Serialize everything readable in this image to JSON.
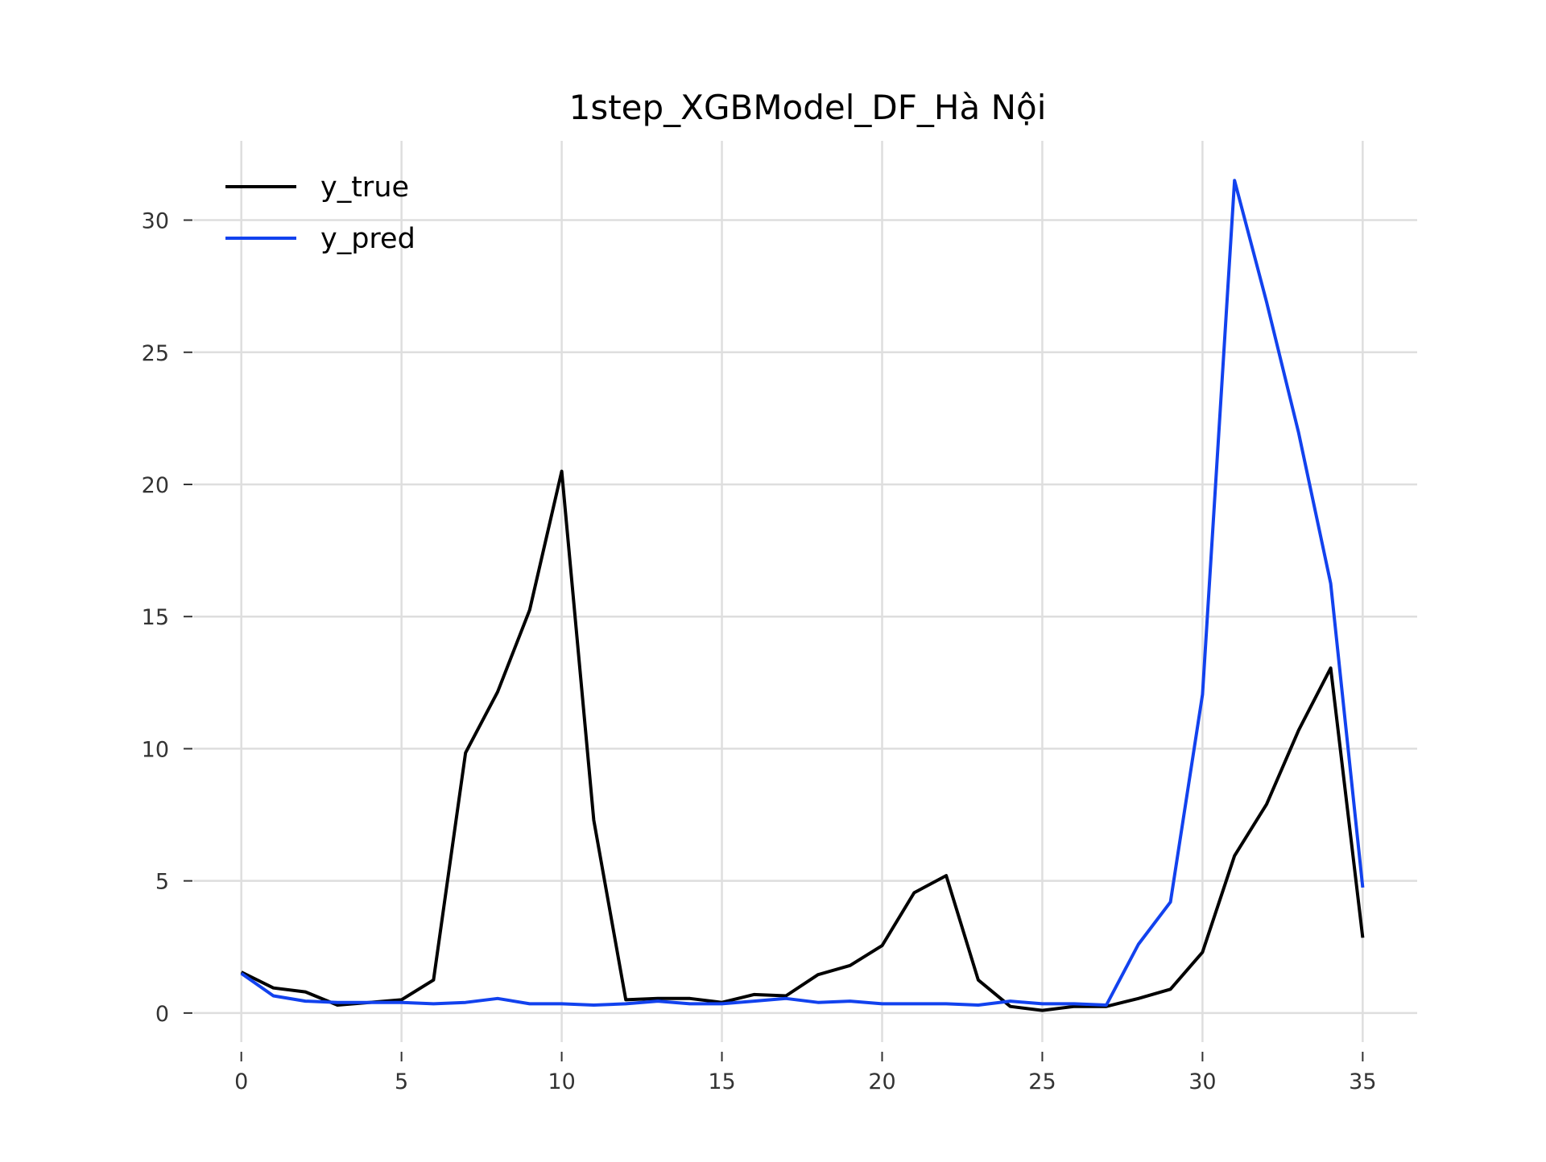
{
  "chart_data": {
    "type": "line",
    "title": "1step_XGBModel_DF_Hà Nội",
    "xlabel": "",
    "ylabel": "",
    "xlim": [
      -1.5,
      36.7
    ],
    "ylim": [
      -1.1,
      33.0
    ],
    "x_ticks": [
      0,
      5,
      10,
      15,
      20,
      25,
      30,
      35
    ],
    "y_ticks": [
      0,
      5,
      10,
      15,
      20,
      25,
      30
    ],
    "grid": true,
    "legend_position": "top-left",
    "x": [
      0,
      1,
      2,
      3,
      4,
      5,
      6,
      7,
      8,
      9,
      10,
      11,
      12,
      13,
      14,
      15,
      16,
      17,
      18,
      19,
      20,
      21,
      22,
      23,
      24,
      25,
      26,
      27,
      28,
      29,
      30,
      31,
      32,
      33,
      34,
      35
    ],
    "series": [
      {
        "name": "y_true",
        "color": "#000000",
        "values": [
          1.55,
          0.95,
          0.8,
          0.3,
          0.4,
          0.5,
          1.25,
          9.85,
          12.15,
          15.25,
          20.5,
          7.3,
          0.5,
          0.55,
          0.55,
          0.4,
          0.7,
          0.65,
          1.45,
          1.8,
          2.55,
          4.55,
          5.2,
          1.25,
          0.25,
          0.1,
          0.25,
          0.25,
          0.55,
          0.9,
          2.3,
          5.95,
          7.9,
          10.7,
          13.05,
          2.85
        ]
      },
      {
        "name": "y_pred",
        "color": "#1242ee",
        "values": [
          1.5,
          0.65,
          0.45,
          0.4,
          0.4,
          0.4,
          0.35,
          0.4,
          0.55,
          0.35,
          0.35,
          0.3,
          0.35,
          0.45,
          0.35,
          0.35,
          0.45,
          0.55,
          0.4,
          0.45,
          0.35,
          0.35,
          0.35,
          0.3,
          0.45,
          0.35,
          0.35,
          0.3,
          2.6,
          4.2,
          12.05,
          31.5,
          26.9,
          21.95,
          16.25,
          4.75
        ]
      }
    ]
  }
}
